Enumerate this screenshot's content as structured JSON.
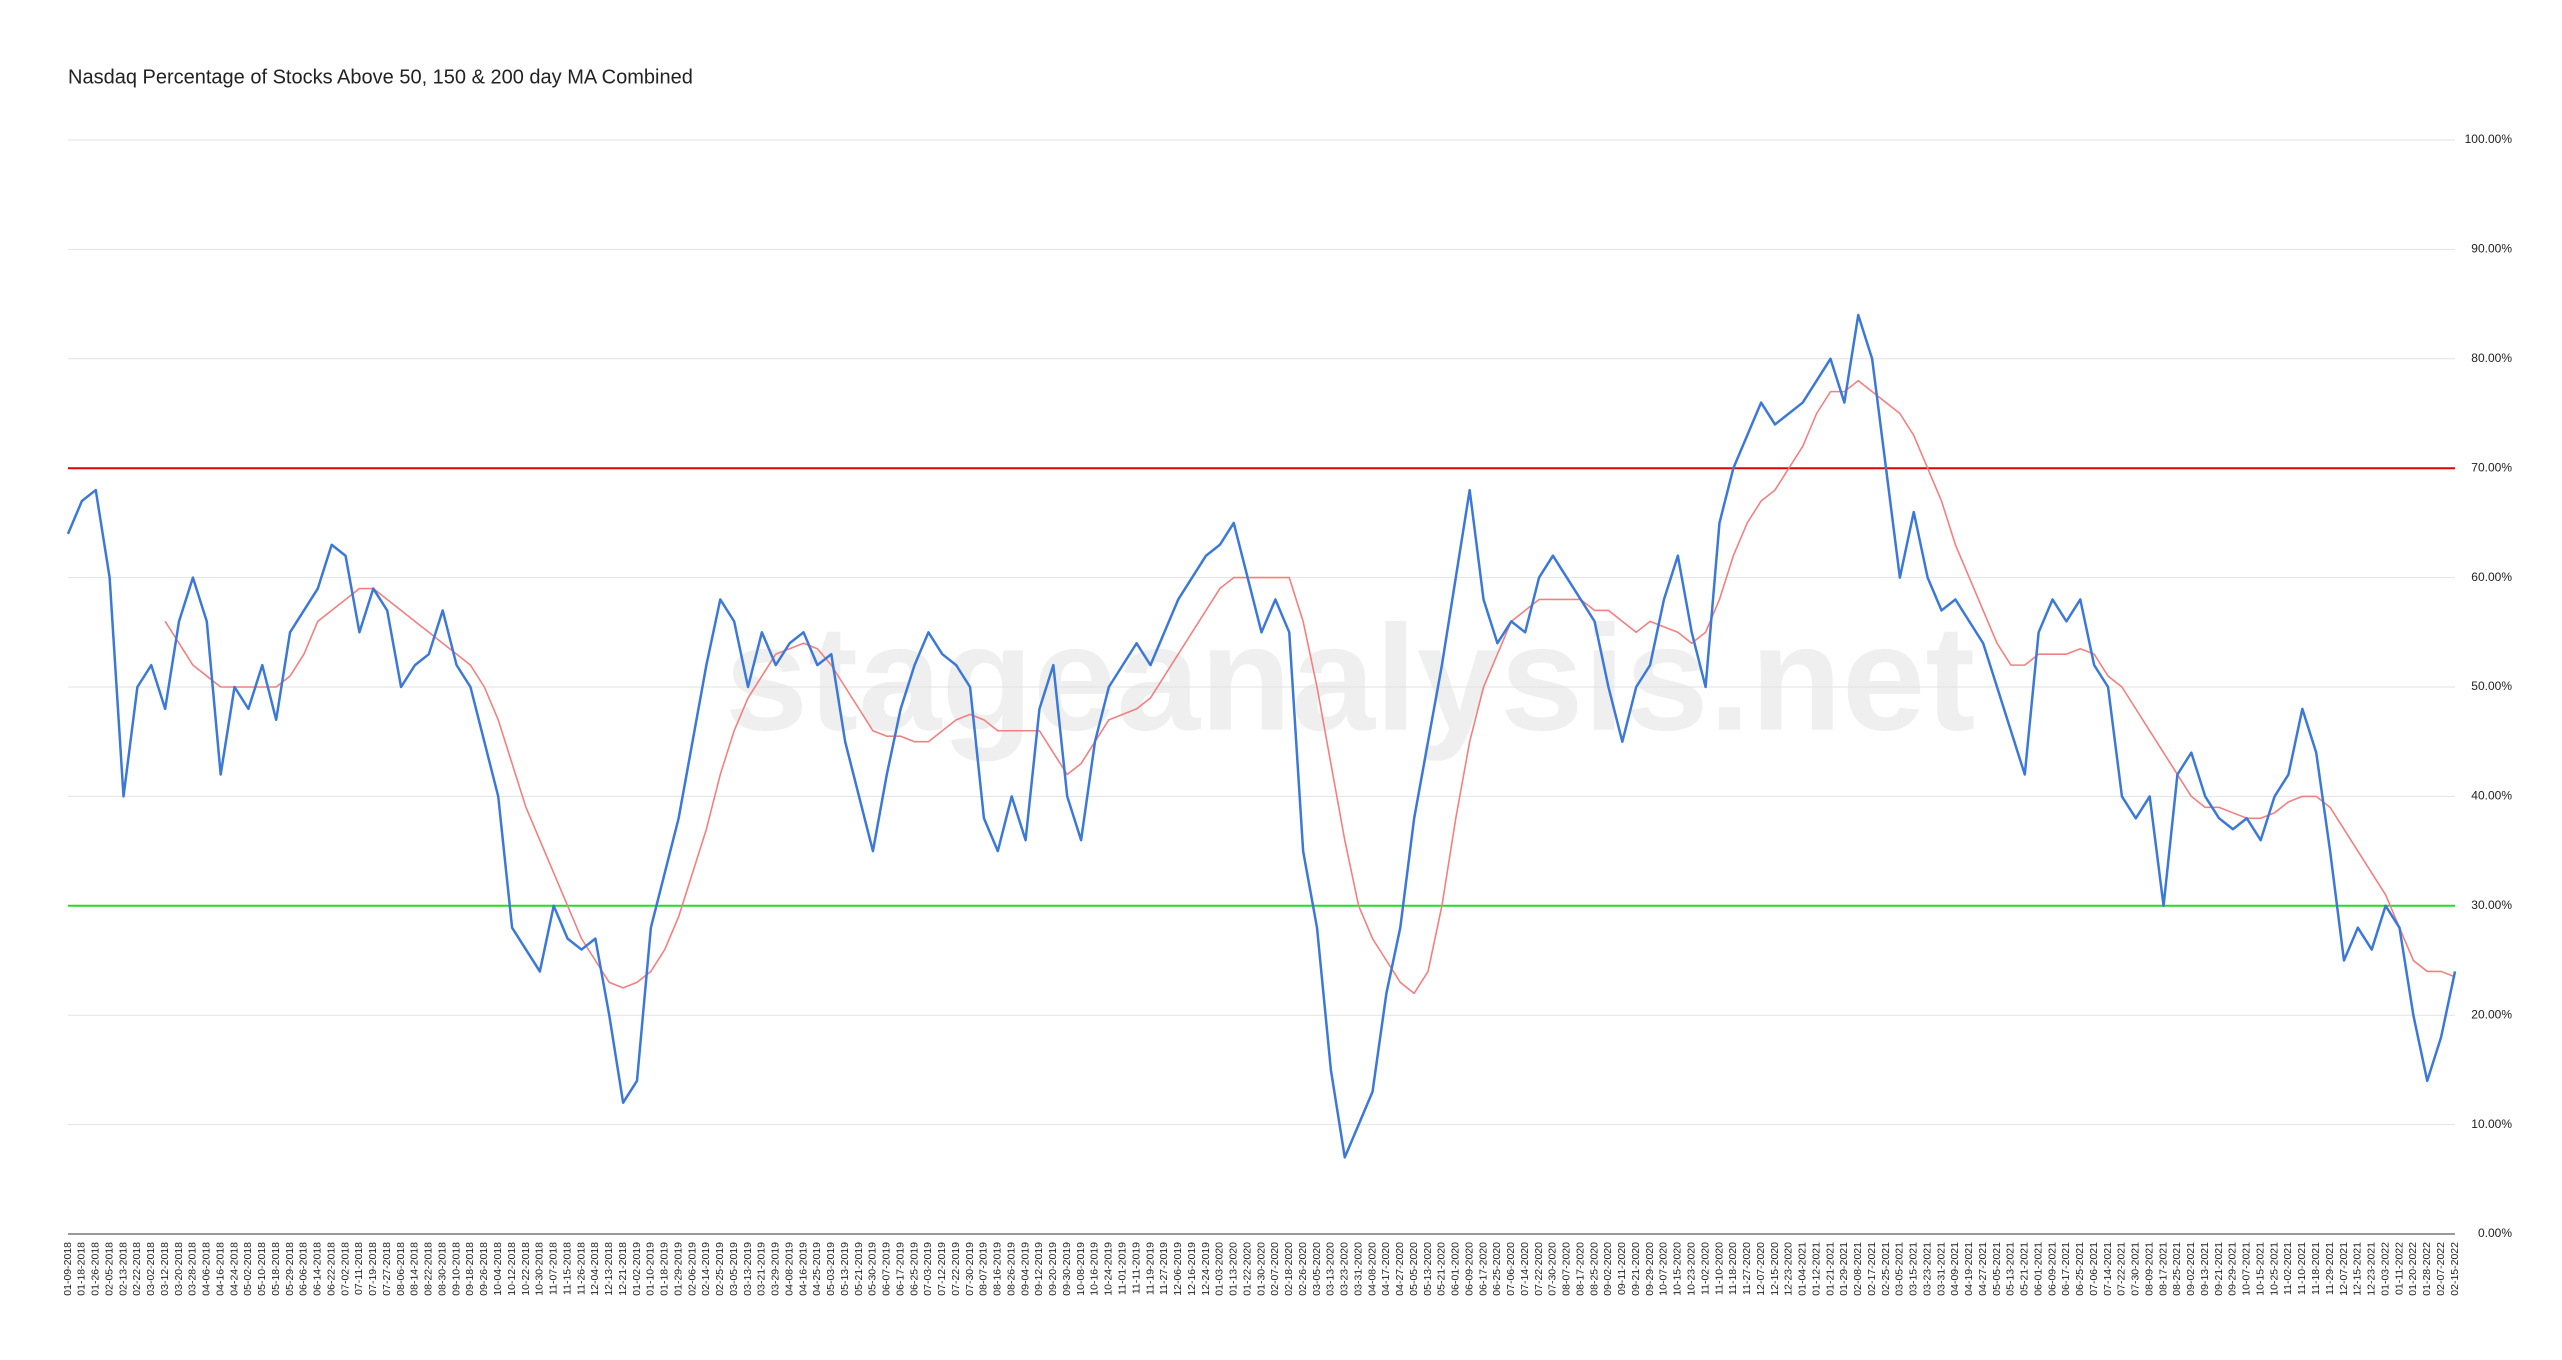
{
  "chart_data": {
    "type": "line",
    "title": "Nasdaq Percentage of Stocks Above 50, 150 & 200 day MA Combined",
    "watermark": "stageanalysis.net",
    "categories": [
      "01-09-2018",
      "01-18-2018",
      "01-26-2018",
      "02-05-2018",
      "02-13-2018",
      "02-22-2018",
      "03-02-2018",
      "03-12-2018",
      "03-20-2018",
      "03-28-2018",
      "04-06-2018",
      "04-16-2018",
      "04-24-2018",
      "05-02-2018",
      "05-10-2018",
      "05-18-2018",
      "05-29-2018",
      "06-06-2018",
      "06-14-2018",
      "06-22-2018",
      "07-02-2018",
      "07-11-2018",
      "07-19-2018",
      "07-27-2018",
      "08-06-2018",
      "08-14-2018",
      "08-22-2018",
      "08-30-2018",
      "09-10-2018",
      "09-18-2018",
      "09-26-2018",
      "10-04-2018",
      "10-12-2018",
      "10-22-2018",
      "10-30-2018",
      "11-07-2018",
      "11-15-2018",
      "11-26-2018",
      "12-04-2018",
      "12-13-2018",
      "12-21-2018",
      "01-02-2019",
      "01-10-2019",
      "01-18-2019",
      "01-29-2019",
      "02-06-2019",
      "02-14-2019",
      "02-25-2019",
      "03-05-2019",
      "03-13-2019",
      "03-21-2019",
      "03-29-2019",
      "04-08-2019",
      "04-16-2019",
      "04-25-2019",
      "05-03-2019",
      "05-13-2019",
      "05-21-2019",
      "05-30-2019",
      "06-07-2019",
      "06-17-2019",
      "06-25-2019",
      "07-03-2019",
      "07-12-2019",
      "07-22-2019",
      "07-30-2019",
      "08-07-2019",
      "08-16-2019",
      "08-26-2019",
      "09-04-2019",
      "09-12-2019",
      "09-20-2019",
      "09-30-2019",
      "10-08-2019",
      "10-16-2019",
      "10-24-2019",
      "11-01-2019",
      "11-11-2019",
      "11-19-2019",
      "11-27-2019",
      "12-06-2019",
      "12-16-2019",
      "12-24-2019",
      "01-03-2020",
      "01-13-2020",
      "01-22-2020",
      "01-30-2020",
      "02-07-2020",
      "02-18-2020",
      "02-26-2020",
      "03-05-2020",
      "03-13-2020",
      "03-23-2020",
      "03-31-2020",
      "04-08-2020",
      "04-17-2020",
      "04-27-2020",
      "05-05-2020",
      "05-13-2020",
      "05-21-2020",
      "06-01-2020",
      "06-09-2020",
      "06-17-2020",
      "06-25-2020",
      "07-06-2020",
      "07-14-2020",
      "07-22-2020",
      "07-30-2020",
      "08-07-2020",
      "08-17-2020",
      "08-25-2020",
      "09-02-2020",
      "09-11-2020",
      "09-21-2020",
      "09-29-2020",
      "10-07-2020",
      "10-15-2020",
      "10-23-2020",
      "11-02-2020",
      "11-10-2020",
      "11-18-2020",
      "11-27-2020",
      "12-07-2020",
      "12-15-2020",
      "12-23-2020",
      "01-04-2021",
      "01-12-2021",
      "01-21-2021",
      "01-29-2021",
      "02-08-2021",
      "02-17-2021",
      "02-25-2021",
      "03-05-2021",
      "03-15-2021",
      "03-23-2021",
      "03-31-2021",
      "04-09-2021",
      "04-19-2021",
      "04-27-2021",
      "05-05-2021",
      "05-13-2021",
      "05-21-2021",
      "06-01-2021",
      "06-09-2021",
      "06-17-2021",
      "06-25-2021",
      "07-06-2021",
      "07-14-2021",
      "07-22-2021",
      "07-30-2021",
      "08-09-2021",
      "08-17-2021",
      "08-25-2021",
      "09-02-2021",
      "09-13-2021",
      "09-21-2021",
      "09-29-2021",
      "10-07-2021",
      "10-15-2021",
      "10-25-2021",
      "11-02-2021",
      "11-10-2021",
      "11-18-2021",
      "11-29-2021",
      "12-07-2021",
      "12-15-2021",
      "12-23-2021",
      "01-03-2022",
      "01-11-2022",
      "01-20-2022",
      "01-28-2022",
      "02-07-2022",
      "02-15-2022"
    ],
    "series": [
      {
        "color": "#3c78d8",
        "values": [
          64,
          67,
          68,
          60,
          40,
          50,
          52,
          48,
          56,
          60,
          56,
          42,
          50,
          48,
          52,
          47,
          55,
          57,
          59,
          63,
          62,
          55,
          59,
          57,
          50,
          52,
          53,
          57,
          52,
          50,
          45,
          40,
          28,
          26,
          24,
          30,
          27,
          26,
          27,
          20,
          12,
          14,
          28,
          33,
          38,
          45,
          52,
          58,
          56,
          50,
          55,
          52,
          54,
          55,
          52,
          53,
          45,
          40,
          35,
          42,
          48,
          52,
          55,
          53,
          52,
          50,
          38,
          35,
          40,
          36,
          48,
          52,
          40,
          36,
          45,
          50,
          52,
          54,
          52,
          55,
          58,
          60,
          62,
          63,
          65,
          60,
          55,
          58,
          55,
          35,
          28,
          15,
          7,
          10,
          13,
          22,
          28,
          38,
          45,
          52,
          60,
          68,
          58,
          54,
          56,
          55,
          60,
          62,
          60,
          58,
          56,
          50,
          45,
          50,
          52,
          58,
          62,
          55,
          50,
          65,
          70,
          73,
          76,
          74,
          75,
          76,
          78,
          80,
          76,
          84,
          80,
          70,
          60,
          66,
          60,
          57,
          58,
          56,
          54,
          50,
          46,
          42,
          55,
          58,
          56,
          58,
          52,
          50,
          40,
          38,
          40,
          30,
          42,
          44,
          40,
          38,
          37,
          38,
          36,
          40,
          42,
          48,
          44,
          35,
          25,
          28,
          26,
          30,
          28,
          20,
          14,
          18,
          24
        ]
      },
      {
        "color": "#f28080",
        "values": [
          null,
          null,
          null,
          null,
          null,
          null,
          null,
          56,
          54,
          52,
          51,
          50,
          50,
          50,
          50,
          50,
          51,
          53,
          56,
          57,
          58,
          59,
          59,
          58,
          57,
          56,
          55,
          54,
          53,
          52,
          50,
          47,
          43,
          39,
          36,
          33,
          30,
          27,
          25,
          23,
          22.5,
          23,
          24,
          26,
          29,
          33,
          37,
          42,
          46,
          49,
          51,
          53,
          53.5,
          54,
          53.5,
          52,
          50,
          48,
          46,
          45.5,
          45.5,
          45,
          45,
          46,
          47,
          47.5,
          47,
          46,
          46,
          46,
          46,
          44,
          42,
          43,
          45,
          47,
          47.5,
          48,
          49,
          51,
          53,
          55,
          57,
          59,
          60,
          60,
          60,
          60,
          60,
          56,
          50,
          43,
          36,
          30,
          27,
          25,
          23,
          22,
          24,
          30,
          38,
          45,
          50,
          53,
          56,
          57,
          58,
          58,
          58,
          58,
          57,
          57,
          56,
          55,
          56,
          55.5,
          55,
          54,
          55,
          58,
          62,
          65,
          67,
          68,
          70,
          72,
          75,
          77,
          77,
          78,
          77,
          76,
          75,
          73,
          70,
          67,
          63,
          60,
          57,
          54,
          52,
          52,
          53,
          53,
          53,
          53.5,
          53,
          51,
          50,
          48,
          46,
          44,
          42,
          40,
          39,
          39,
          38.5,
          38,
          38,
          38.5,
          39.5,
          40,
          40,
          39,
          37,
          35,
          33,
          31,
          28,
          25,
          24,
          24,
          23.5
        ]
      }
    ],
    "reference_lines": [
      {
        "value": 70,
        "color": "#e00000"
      },
      {
        "value": 30,
        "color": "#22dd22"
      }
    ],
    "ylim": [
      0,
      100
    ],
    "yticks": [
      {
        "value": 0,
        "label": "0.00%"
      },
      {
        "value": 10,
        "label": "10.00%"
      },
      {
        "value": 20,
        "label": "20.00%"
      },
      {
        "value": 30,
        "label": "30.00%"
      },
      {
        "value": 40,
        "label": "40.00%"
      },
      {
        "value": 50,
        "label": "50.00%"
      },
      {
        "value": 60,
        "label": "60.00%"
      },
      {
        "value": 70,
        "label": "70.00%"
      },
      {
        "value": 80,
        "label": "80.00%"
      },
      {
        "value": 90,
        "label": "90.00%"
      },
      {
        "value": 100,
        "label": "100.00%"
      }
    ],
    "grid": true
  }
}
